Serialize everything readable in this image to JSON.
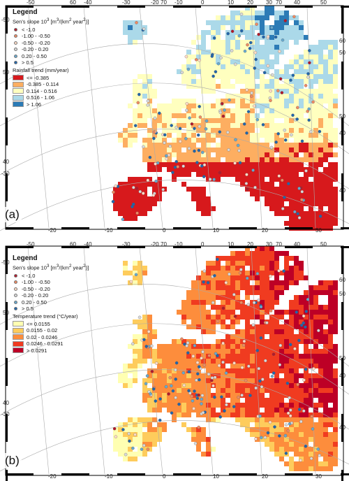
{
  "colors": {
    "sens_slope": [
      "#b2182b",
      "#ef8a62",
      "#fddbc7",
      "#d9d9d9",
      "#67a9cf",
      "#2166ac"
    ],
    "rainfall_trend": [
      "#d7191c",
      "#fdae61",
      "#ffffbf",
      "#abd9e9",
      "#2c7bb6"
    ],
    "temperature_trend": [
      "#ffffb2",
      "#fecc5c",
      "#fd8d3c",
      "#f03b20",
      "#bd0026"
    ],
    "land_empty": "#ffffff",
    "grid": "#aaaaaa"
  },
  "panels": [
    {
      "label": "(a)",
      "legend_title": "Legend",
      "slope_title": "Sen's slope  10",
      "slope_sup": "3",
      "slope_unit_pre": "  [m",
      "slope_unit_sup": "3",
      "slope_unit_post": "/(km",
      "slope_unit_sup2": "2",
      "slope_unit_end": " year",
      "slope_unit_sup3": "2",
      "slope_unit_close": ")]",
      "slope_classes": [
        "< -1.0",
        "-1.00 - -0.50",
        "-0.50 - -0.20",
        "-0.20 - 0.20",
        "0.20 - 0.50",
        "> 0.5"
      ],
      "trend_title": "Rainfall trend (mm/year)",
      "trend_classes": [
        "<= -0.385",
        "-0.385 - 0.114",
        "0.114 - 0.516",
        "0.516 - 1.06",
        "> 1.06"
      ],
      "top_ticks": [
        "-50",
        "60",
        "-40",
        "-30",
        "-20",
        "70",
        "-10",
        "0",
        "10",
        "20",
        "30",
        "70",
        "40",
        "50"
      ],
      "bottom_ticks": [
        "-20",
        "-10",
        "0",
        "10",
        "20",
        "30"
      ],
      "left_ticks": [
        "-50",
        "50",
        "40",
        "-30"
      ],
      "right_ticks": [
        "60",
        "50",
        "50",
        "40",
        "40"
      ]
    },
    {
      "label": "(b)",
      "legend_title": "Legend",
      "slope_title": "Sen's slope  10",
      "slope_sup": "3",
      "slope_unit_pre": "  [m",
      "slope_unit_sup": "3",
      "slope_unit_post": "/(km",
      "slope_unit_sup2": "2",
      "slope_unit_end": " year",
      "slope_unit_sup3": "2",
      "slope_unit_close": ")]",
      "slope_classes": [
        "< -1.0",
        "-1.00 - -0.50",
        "-0.50 - -0.20",
        "-0.20 - 0.20",
        "0.20 - 0.50",
        "> 0.5"
      ],
      "trend_title": "Temperature trend (°C/year)",
      "trend_classes": [
        "<= 0.0155",
        "0.0155 - 0.02",
        "0.02 - 0.0246",
        "0.0246 - 0.0291",
        "> 0.0291"
      ],
      "top_ticks": [
        "-50",
        "60",
        "-40",
        "-30",
        "-20",
        "70",
        "-10",
        "0",
        "10",
        "20",
        "30",
        "70",
        "40",
        "50"
      ],
      "bottom_ticks": [
        "-20",
        "-10",
        "0",
        "10",
        "20",
        "30"
      ],
      "left_ticks": [
        "-50",
        "50",
        "40",
        "-30"
      ],
      "right_ticks": [
        "60",
        "50",
        "50",
        "40",
        "40"
      ]
    }
  ]
}
